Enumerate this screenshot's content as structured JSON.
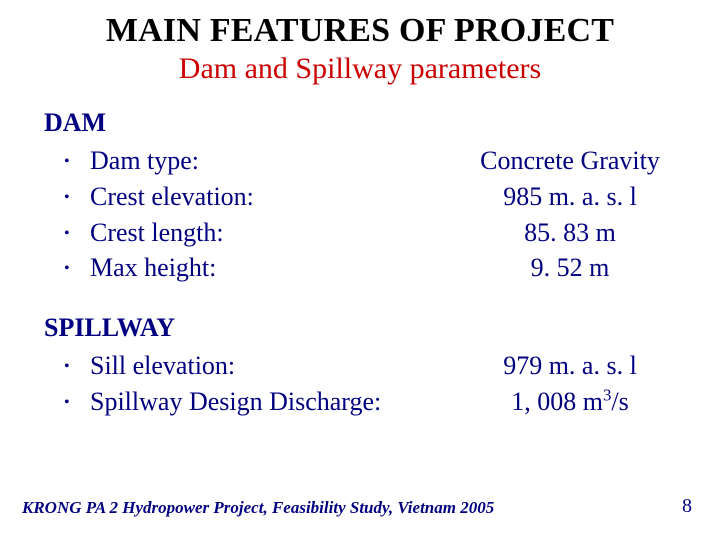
{
  "title": "MAIN FEATURES OF PROJECT",
  "subtitle": "Dam and Spillway parameters",
  "colors": {
    "title": "#000000",
    "subtitle": "#cc0000",
    "body": "#000080",
    "background": "#ffffff"
  },
  "fonts": {
    "family": "Times New Roman",
    "title_size_pt": 34,
    "subtitle_size_pt": 30,
    "section_head_size_pt": 26,
    "item_size_pt": 26,
    "footer_size_pt": 17,
    "pagenum_size_pt": 20
  },
  "sections": [
    {
      "heading": "DAM",
      "items": [
        {
          "label": "Dam type:",
          "value": "Concrete Gravity"
        },
        {
          "label": "Crest elevation:",
          "value": "985 m. a. s. l"
        },
        {
          "label": "Crest length:",
          "value": "85. 83 m"
        },
        {
          "label": "Max height:",
          "value": "9. 52 m"
        }
      ]
    },
    {
      "heading": "SPILLWAY",
      "items": [
        {
          "label": "Sill elevation:",
          "value": "979 m. a. s. l"
        },
        {
          "label": "Spillway Design Discharge:",
          "value": "1, 008 m3/s",
          "value_has_superscript_3": true
        }
      ]
    }
  ],
  "footer": "KRONG PA 2 Hydropower Project, Feasibility Study, Vietnam 2005",
  "page_number": "8",
  "bullet_glyph": "•"
}
